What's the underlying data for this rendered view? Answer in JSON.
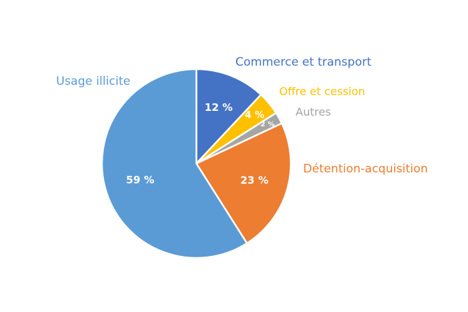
{
  "chart_data": {
    "type": "pie",
    "title": "",
    "slices": [
      {
        "label": "Commerce et transport",
        "value": 12,
        "value_label": "12 %",
        "color": "#4472C4"
      },
      {
        "label": "Offre et cession",
        "value": 4,
        "value_label": "4 %",
        "color": "#FFC000"
      },
      {
        "label": "Autres",
        "value": 2,
        "value_label": "2 %",
        "color": "#A5A5A5"
      },
      {
        "label": "Détention-acquisition",
        "value": 23,
        "value_label": "23 %",
        "color": "#ED7D31"
      },
      {
        "label": "Usage illicite",
        "value": 59,
        "value_label": "59 %",
        "color": "#5B9BD5"
      }
    ],
    "start_angle": "top",
    "direction": "clockwise",
    "legend": "none",
    "labels": "outside category names and inside percentages"
  }
}
